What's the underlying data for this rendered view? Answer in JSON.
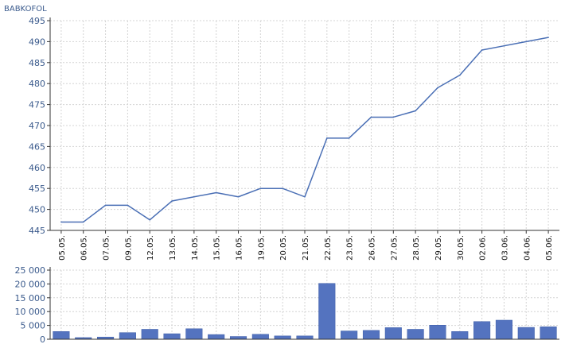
{
  "chart_data": [
    {
      "type": "line",
      "title": "BABKOFOL",
      "categories": [
        "05.05.",
        "06.05.",
        "07.05.",
        "09.05.",
        "12.05.",
        "13.05.",
        "14.05.",
        "15.05.",
        "16.05.",
        "19.05.",
        "20.05.",
        "21.05.",
        "22.05.",
        "23.05.",
        "26.05.",
        "27.05.",
        "28.05.",
        "29.05.",
        "30.05.",
        "02.06.",
        "03.06.",
        "04.06.",
        "05.06."
      ],
      "values": [
        447,
        447,
        451,
        451,
        447.5,
        452,
        453,
        454,
        453,
        455,
        455,
        453,
        467,
        467,
        472,
        472,
        473.5,
        479,
        482,
        488,
        489,
        490,
        491
      ],
      "ylim": [
        445,
        495
      ],
      "yticks": [
        "445",
        "450",
        "455",
        "460",
        "465",
        "470",
        "475",
        "480",
        "485",
        "490",
        "495"
      ],
      "grid": true,
      "colors": {
        "line": "#4a6fb5",
        "grid": "#d4d4d4",
        "axis": "#333333"
      }
    },
    {
      "type": "bar",
      "categories": [
        "05.05.",
        "06.05.",
        "07.05.",
        "09.05.",
        "12.05.",
        "13.05.",
        "14.05.",
        "15.05.",
        "16.05.",
        "19.05.",
        "20.05.",
        "21.05.",
        "22.05.",
        "23.05.",
        "26.05.",
        "27.05.",
        "28.05.",
        "29.05.",
        "30.05.",
        "02.06.",
        "03.06.",
        "04.06.",
        "05.06."
      ],
      "values": [
        2800,
        600,
        800,
        2400,
        3600,
        2000,
        3800,
        1700,
        1000,
        1800,
        1200,
        1200,
        20200,
        3000,
        3200,
        4200,
        3600,
        5100,
        2800,
        6400,
        6900,
        4300,
        4500
      ],
      "ylim": [
        0,
        25000
      ],
      "yticks": [
        "0",
        "5 000",
        "10 000",
        "15 000",
        "20 000",
        "25 000"
      ],
      "grid": true,
      "colors": {
        "bar": "#5473bf",
        "bar_edge": "#3e5ea8",
        "grid": "#d4d4d4",
        "axis": "#333333"
      }
    }
  ]
}
